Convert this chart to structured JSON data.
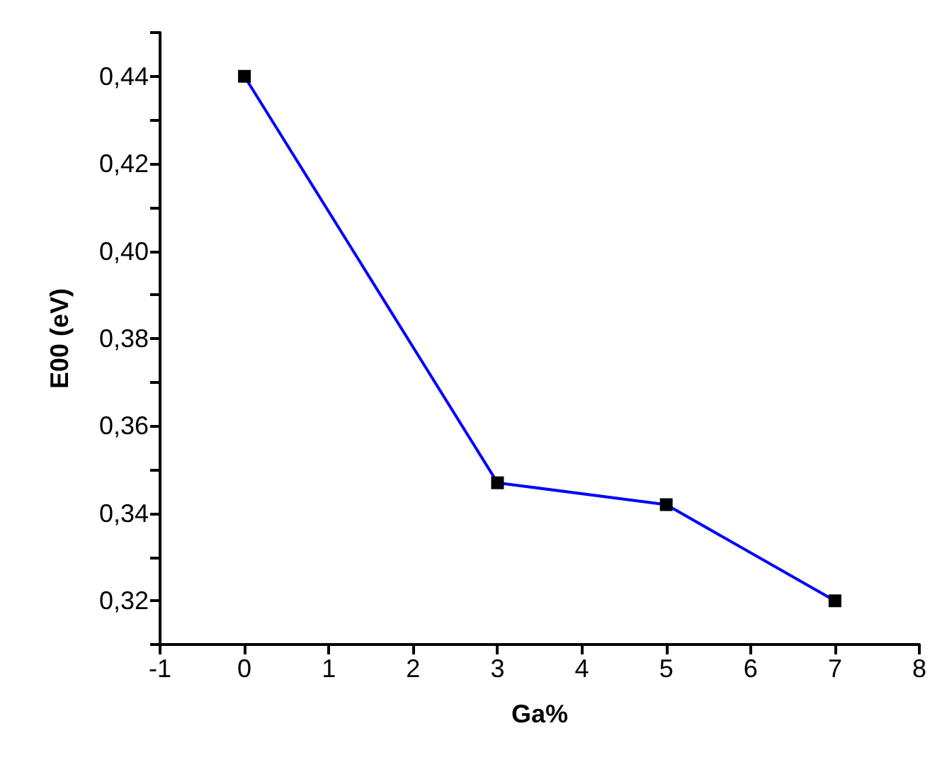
{
  "chart_data": {
    "type": "line",
    "xlabel": "Ga%",
    "ylabel": "E00 (eV)",
    "x": [
      0,
      3,
      5,
      7
    ],
    "series": [
      {
        "color": "#0000ff",
        "values": [
          0.44,
          0.347,
          0.342,
          0.32
        ]
      }
    ],
    "xlim": [
      -1,
      8
    ],
    "xticks": [
      -1,
      0,
      1,
      2,
      3,
      4,
      5,
      6,
      7,
      8
    ],
    "ylim": [
      0.31,
      0.45
    ],
    "yticks": [
      {
        "value": 0.31,
        "label": null
      },
      {
        "value": 0.32,
        "label": "0,32"
      },
      {
        "value": 0.33,
        "label": null
      },
      {
        "value": 0.34,
        "label": "0,34"
      },
      {
        "value": 0.35,
        "label": null
      },
      {
        "value": 0.36,
        "label": "0,36"
      },
      {
        "value": 0.37,
        "label": null
      },
      {
        "value": 0.38,
        "label": "0,38"
      },
      {
        "value": 0.39,
        "label": null
      },
      {
        "value": 0.4,
        "label": "0,40"
      },
      {
        "value": 0.41,
        "label": null
      },
      {
        "value": 0.42,
        "label": "0,42"
      },
      {
        "value": 0.43,
        "label": null
      },
      {
        "value": 0.44,
        "label": "0,44"
      },
      {
        "value": 0.45,
        "label": null
      }
    ],
    "marker": "square",
    "line_style": "solid",
    "grid": false
  }
}
